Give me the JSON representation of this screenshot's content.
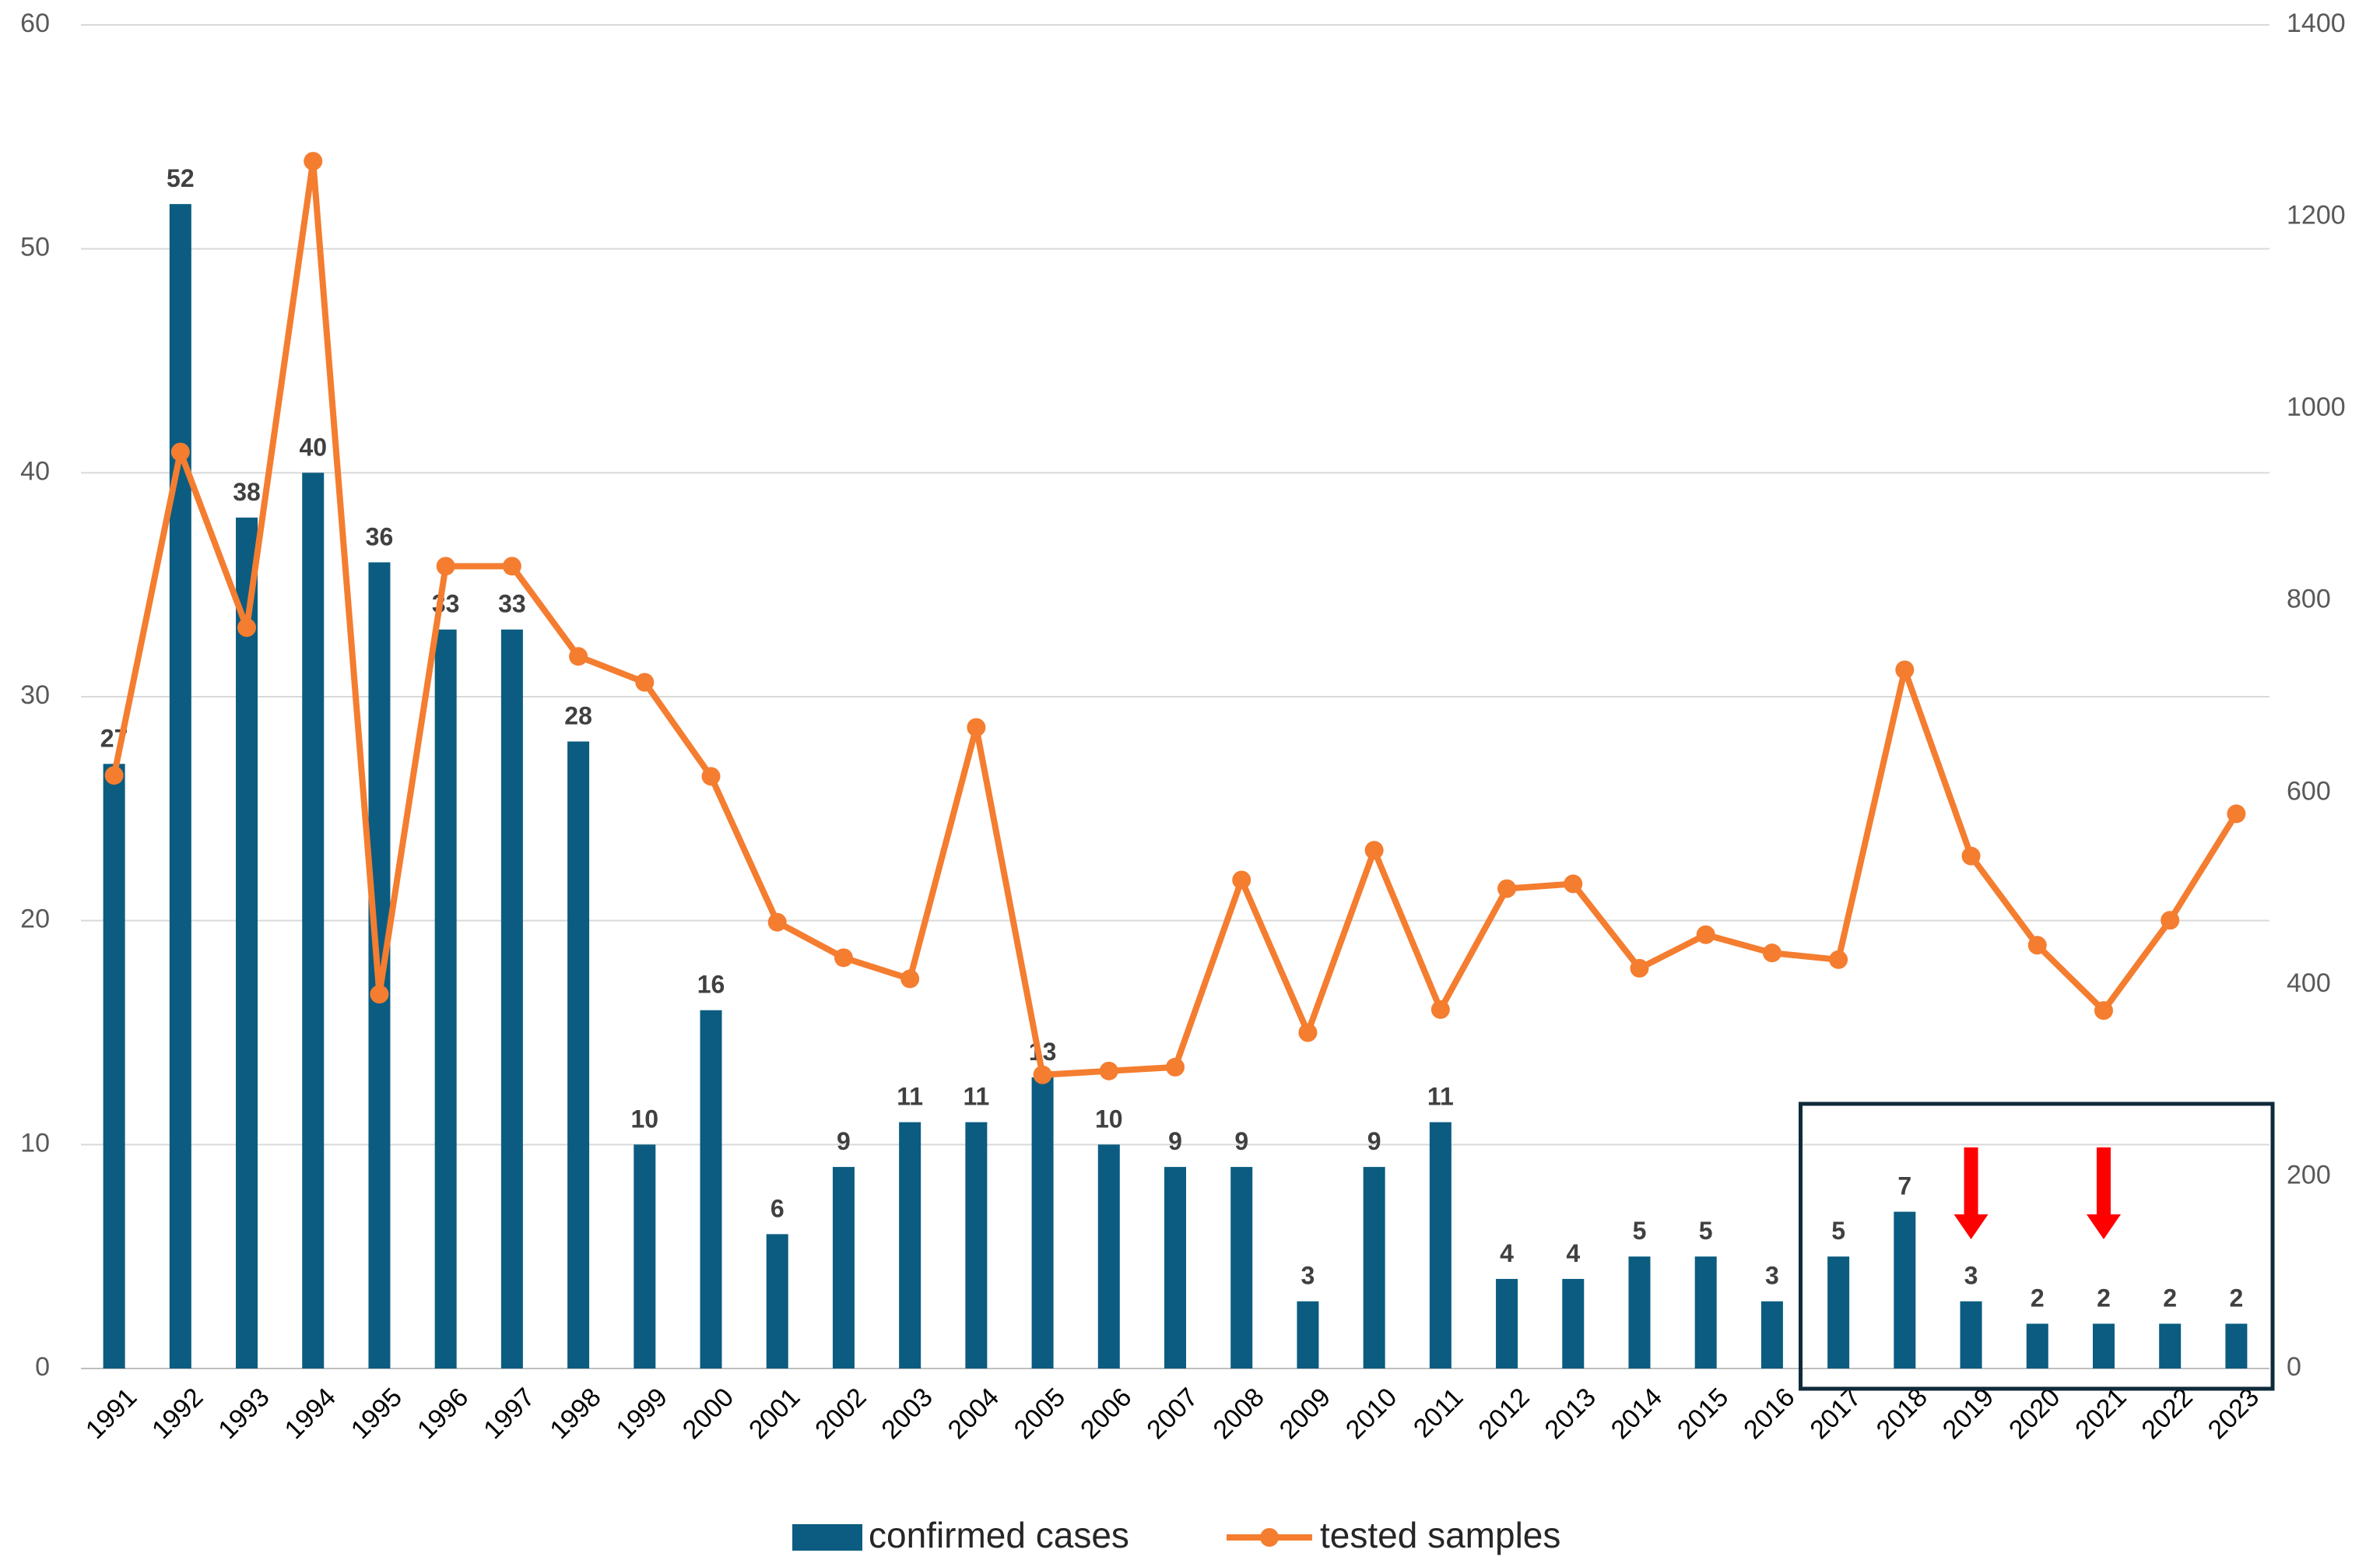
{
  "chart_data": {
    "type": "bar+line",
    "categories": [
      "1991",
      "1992",
      "1993",
      "1994",
      "1995",
      "1996",
      "1997",
      "1998",
      "1999",
      "2000",
      "2001",
      "2002",
      "2003",
      "2004",
      "2005",
      "2006",
      "2007",
      "2008",
      "2009",
      "2010",
      "2011",
      "2012",
      "2013",
      "2014",
      "2015",
      "2016",
      "2017",
      "2018",
      "2019",
      "2020",
      "2021",
      "2022",
      "2023"
    ],
    "series": [
      {
        "name": "confirmed cases",
        "type": "bar",
        "axis": "left",
        "color": "#0B5C80",
        "values": [
          27,
          52,
          38,
          40,
          36,
          33,
          33,
          28,
          10,
          16,
          6,
          9,
          11,
          11,
          13,
          10,
          9,
          9,
          3,
          9,
          11,
          4,
          4,
          5,
          5,
          3,
          5,
          7,
          3,
          2,
          2,
          2,
          2
        ]
      },
      {
        "name": "tested samples",
        "type": "line",
        "axis": "right",
        "color": "#F47D30",
        "values": [
          618,
          955,
          772,
          1258,
          390,
          836,
          836,
          742,
          715,
          617,
          465,
          428,
          406,
          668,
          306,
          310,
          314,
          509,
          350,
          540,
          374,
          500,
          505,
          417,
          452,
          433,
          426,
          728,
          534,
          441,
          373,
          467,
          578
        ]
      }
    ],
    "left_axis": {
      "min": 0,
      "max": 60,
      "ticks": [
        0,
        10,
        20,
        30,
        40,
        50,
        60
      ]
    },
    "right_axis": {
      "min": 0,
      "max": 1400,
      "ticks": [
        0,
        200,
        400,
        600,
        800,
        1000,
        1200,
        1400
      ]
    },
    "annotations": {
      "highlight_box_years": [
        "2017",
        "2023"
      ],
      "arrow_years": [
        "2019",
        "2021"
      ],
      "arrow_color": "#FF0000",
      "box_color": "#0F2A3A"
    },
    "legend": {
      "position": "bottom"
    },
    "grid": true
  }
}
